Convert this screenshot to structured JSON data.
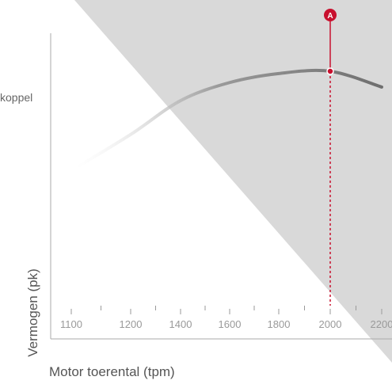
{
  "chart_data": {
    "type": "line",
    "series": [
      {
        "name": "koppel",
        "x": [
          1100,
          1200,
          1400,
          1600,
          1800,
          2000,
          2200
        ],
        "y": [
          0.56,
          0.72,
          0.87,
          0.95,
          0.99,
          1.0,
          0.93
        ]
      }
    ],
    "x_ticks": [
      "1100",
      "1200",
      "1400",
      "1600",
      "1800",
      "2000",
      "2200"
    ],
    "xlabel": "Motor toerental (tpm)",
    "ylabel": "Vermogen (pk)",
    "marker": {
      "label": "A",
      "x": 2000,
      "y": 1.0
    },
    "colors": {
      "accent": "#c8102e",
      "shade": "#d9d9d9",
      "curve": "#777777",
      "axis": "#aaaaaa"
    }
  }
}
